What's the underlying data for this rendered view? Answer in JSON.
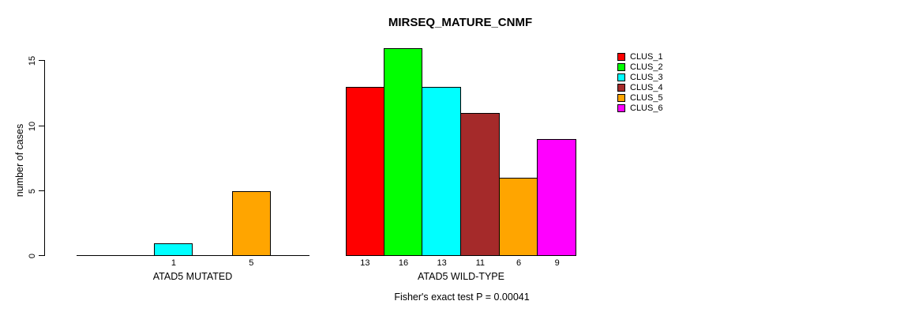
{
  "title": "MIRSEQ_MATURE_CNMF",
  "y_axis": {
    "label": "number of cases",
    "tick_labels": [
      "0",
      "5",
      "10",
      "15"
    ]
  },
  "footnote": "Fisher's exact test P = 0.00041",
  "legend": {
    "position": "right"
  },
  "chart_data": {
    "type": "bar",
    "title": "MIRSEQ_MATURE_CNMF",
    "xlabel": "",
    "ylabel": "number of cases",
    "ylim": [
      0,
      15
    ],
    "y_ticks": [
      0,
      5,
      10,
      15
    ],
    "grid": false,
    "legend_position": "right",
    "series_labels": [
      "CLUS_1",
      "CLUS_2",
      "CLUS_3",
      "CLUS_4",
      "CLUS_5",
      "CLUS_6"
    ],
    "series_colors": [
      "#ff0000",
      "#00ff00",
      "#00ffff",
      "#a52a2a",
      "#ffa500",
      "#ff00ff"
    ],
    "groups": [
      {
        "label": "ATAD5 MUTATED",
        "values": [
          0,
          0,
          1,
          0,
          5,
          0
        ],
        "bar_labels": [
          "",
          "",
          "1",
          "",
          "5",
          ""
        ]
      },
      {
        "label": "ATAD5 WILD-TYPE",
        "values": [
          13,
          16,
          13,
          11,
          6,
          9
        ],
        "bar_labels": [
          "13",
          "16",
          "13",
          "11",
          "6",
          "9"
        ]
      }
    ],
    "annotation": "Fisher's exact test P = 0.00041"
  }
}
